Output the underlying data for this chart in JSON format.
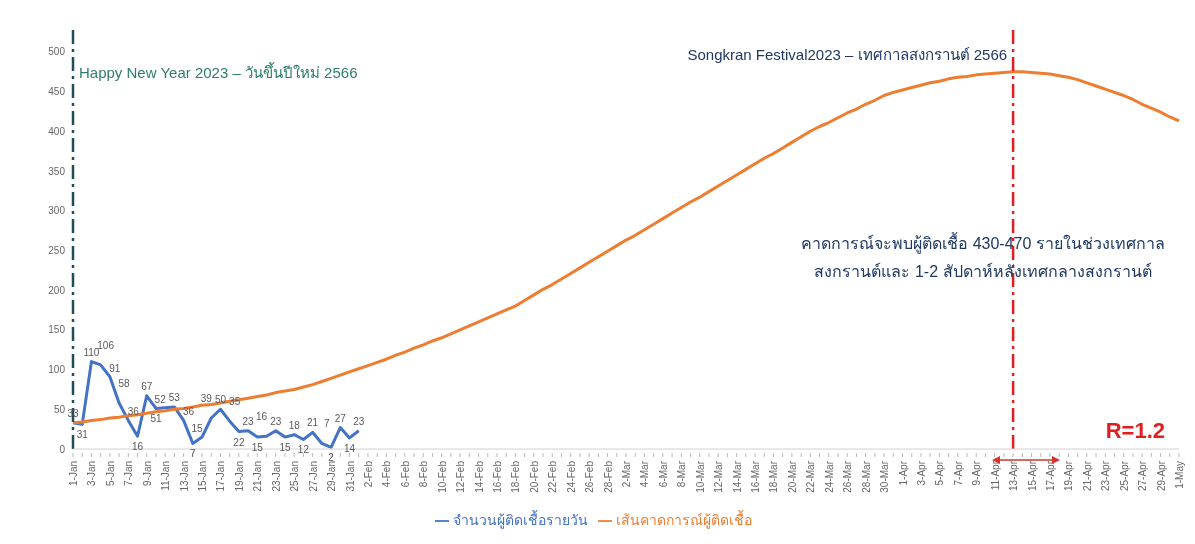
{
  "chart_data": {
    "type": "line",
    "categories": [
      "1-Jan",
      null,
      "3-Jan",
      null,
      "5-Jan",
      null,
      "7-Jan",
      null,
      "9-Jan",
      null,
      "11-Jan",
      null,
      "13-Jan",
      null,
      "15-Jan",
      null,
      "17-Jan",
      null,
      "19-Jan",
      null,
      "21-Jan",
      null,
      "23-Jan",
      null,
      "25-Jan",
      null,
      "27-Jan",
      null,
      "29-Jan",
      null,
      "31-Jan",
      null,
      "2-Feb",
      null,
      "4-Feb",
      null,
      "6-Feb",
      null,
      "8-Feb",
      null,
      "10-Feb",
      null,
      "12-Feb",
      null,
      "14-Feb",
      null,
      "16-Feb",
      null,
      "18-Feb",
      null,
      "20-Feb",
      null,
      "22-Feb",
      null,
      "24-Feb",
      null,
      "26-Feb",
      null,
      "28-Feb",
      null,
      "2-Mar",
      null,
      "4-Mar",
      null,
      "6-Mar",
      null,
      "8-Mar",
      null,
      "10-Mar",
      null,
      "12-Mar",
      null,
      "14-Mar",
      null,
      "16-Mar",
      null,
      "18-Mar",
      null,
      "20-Mar",
      null,
      "22-Mar",
      null,
      "24-Mar",
      null,
      "26-Mar",
      null,
      "28-Mar",
      null,
      "30-Mar",
      null,
      "1-Apr",
      null,
      "3-Apr",
      null,
      "5-Apr",
      null,
      "7-Apr",
      null,
      "9-Apr",
      null,
      "11-Apr",
      null,
      "13-Apr",
      null,
      "15-Apr",
      null,
      "17-Apr",
      null,
      "19-Apr",
      null,
      "21-Apr",
      null,
      "23-Apr",
      null,
      "25-Apr",
      null,
      "27-Apr",
      null,
      "29-Apr",
      null,
      "1-May"
    ],
    "series": [
      {
        "name": "จำนวนผู้ติดเชื้อรายวัน",
        "color": "#4472c4",
        "values": [
          33,
          31,
          110,
          106,
          91,
          58,
          36,
          16,
          67,
          51,
          52,
          53,
          36,
          7,
          15,
          39,
          50,
          35,
          22,
          23,
          15,
          16,
          23,
          15,
          18,
          12,
          21,
          7,
          2,
          27,
          14,
          23,
          null,
          null,
          null,
          null,
          null,
          null,
          null,
          null,
          null,
          null,
          null,
          null,
          null,
          null,
          null,
          null,
          null,
          null,
          null,
          null,
          null,
          null,
          null,
          null,
          null,
          null,
          null,
          null,
          null,
          null,
          null,
          null,
          null,
          null,
          null,
          null,
          null,
          null,
          null,
          null,
          null,
          null,
          null,
          null,
          null,
          null,
          null,
          null,
          null,
          null,
          null,
          null,
          null,
          null,
          null,
          null,
          null,
          null,
          null,
          null,
          null,
          null,
          null,
          null,
          null,
          null,
          null,
          null,
          null,
          null,
          null,
          null,
          null,
          null,
          null,
          null,
          null,
          null,
          null,
          null,
          null,
          null,
          null,
          null,
          null,
          null,
          null,
          null,
          null
        ],
        "value_labels": [
          "33",
          "31",
          "110",
          "106",
          "91",
          "58",
          "36",
          "16",
          "67",
          "51",
          "52",
          "53",
          "36",
          "7",
          "15",
          "39",
          "50",
          "35",
          "22",
          "23",
          "15",
          "16",
          "23",
          "15",
          "18",
          "12",
          "21",
          "7",
          "2",
          "27",
          "14",
          "23",
          null,
          null,
          null,
          null,
          null,
          null,
          null,
          null,
          null,
          null,
          null,
          null,
          null,
          null,
          null,
          null,
          null,
          null,
          null,
          null,
          null,
          null,
          null,
          null,
          null,
          null,
          null,
          null,
          null,
          null,
          null,
          null,
          null,
          null,
          null,
          null,
          null,
          null,
          null,
          null,
          null,
          null,
          null,
          null,
          null,
          null,
          null,
          null,
          null,
          null,
          null,
          null,
          null,
          null,
          null,
          null,
          null,
          null,
          null,
          null,
          null,
          null,
          null,
          null,
          null,
          null,
          null,
          null,
          null,
          null,
          null,
          null,
          null,
          null,
          null,
          null,
          null,
          null,
          null,
          null,
          null,
          null,
          null,
          null,
          null,
          null,
          null,
          null,
          null
        ]
      },
      {
        "name": "เส้นคาดการณ์ผู้ติดเชื้อ",
        "color": "#ed7d31",
        "values": [
          33,
          34,
          36,
          37,
          39,
          40,
          42,
          43,
          45,
          47,
          48,
          50,
          51,
          53,
          55,
          56,
          58,
          60,
          62,
          64,
          66,
          68,
          71,
          73,
          75,
          78,
          81,
          85,
          89,
          93,
          97,
          101,
          105,
          109,
          113,
          118,
          122,
          127,
          131,
          136,
          140,
          145,
          150,
          155,
          160,
          165,
          170,
          175,
          180,
          187,
          194,
          201,
          207,
          214,
          221,
          228,
          235,
          242,
          249,
          256,
          263,
          269,
          276,
          283,
          290,
          297,
          304,
          311,
          317,
          324,
          331,
          338,
          345,
          352,
          359,
          366,
          372,
          379,
          386,
          393,
          400,
          406,
          411,
          417,
          423,
          428,
          434,
          439,
          445,
          449,
          452,
          455,
          458,
          461,
          463,
          466,
          468,
          469,
          471,
          472,
          473,
          474,
          475,
          475,
          474,
          473,
          472,
          470,
          468,
          465,
          461,
          457,
          453,
          449,
          445,
          440,
          434,
          429,
          424,
          418,
          413
        ]
      }
    ],
    "ylim": [
      0,
      530
    ],
    "yticks": [
      0,
      50,
      100,
      150,
      200,
      250,
      300,
      350,
      400,
      450,
      500
    ],
    "grid": false,
    "legend": "bottom",
    "marker": "none",
    "line_style": "solid",
    "ref_lines": [
      {
        "axis": "x",
        "value": "1-Jan",
        "label": "Happy New Year 2023 – วันขึ้นปีใหม่ 2566",
        "color": "#1f4e5a",
        "line_style": "dashed"
      },
      {
        "axis": "x",
        "value": "13-Apr",
        "label": "Songkran Festival2023 – เทศกาลสงกรานต์ 2566",
        "color": "#e02020",
        "line_style": "dashed"
      }
    ],
    "annotations": [
      "คาดการณ์จะพบผู้ติดเชื้อ 430-470 รายในช่วงเทศกาลสงกรานต์และ 1-2 สัปดาห์หลังเทศกลางสงกรานต์",
      "R=1.2"
    ]
  }
}
